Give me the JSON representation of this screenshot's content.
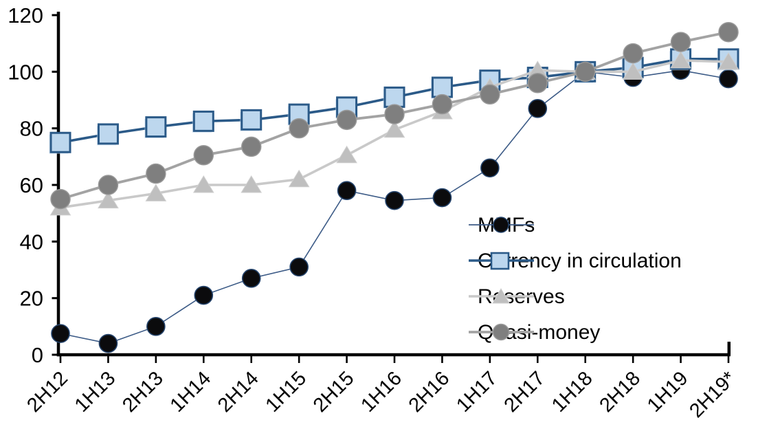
{
  "chart_data": {
    "type": "line",
    "title": "",
    "xlabel": "",
    "ylabel": "",
    "categories": [
      "2H12",
      "1H13",
      "2H13",
      "1H14",
      "2H14",
      "1H15",
      "2H15",
      "1H16",
      "2H16",
      "1H17",
      "2H17",
      "1H18",
      "2H18",
      "1H19",
      "2H19*"
    ],
    "series": [
      {
        "name": "MMFs",
        "marker": "circle-black",
        "line_color": "#3B5A86",
        "line_width": 1.6,
        "fill_color": "#0B0B0D",
        "edge_color": "#24436B",
        "values": [
          7.5,
          4,
          10,
          21,
          27,
          31,
          58,
          54.5,
          55.5,
          66,
          87,
          100,
          98,
          100.5,
          97.5
        ]
      },
      {
        "name": "Currency in circulation",
        "marker": "square-lightblue",
        "line_color": "#2B5A88",
        "line_width": 3.6,
        "fill_color": "#BDD7EE",
        "edge_color": "#2B5A88",
        "values": [
          75,
          78,
          80.5,
          82.5,
          83,
          85,
          87.5,
          91,
          94.5,
          97,
          98,
          100,
          101.5,
          104.5,
          104.5
        ]
      },
      {
        "name": "Reserves",
        "marker": "triangle-lightgray",
        "line_color": "#C9C9C9",
        "line_width": 3.6,
        "fill_color": "#BFBFBF",
        "edge_color": "#CFCFCF",
        "values": [
          52,
          54.5,
          57,
          60,
          60,
          62,
          70.5,
          79.5,
          86,
          94.5,
          100.5,
          100,
          100,
          104,
          103.5
        ]
      },
      {
        "name": "Quasi-money",
        "marker": "circle-gray",
        "line_color": "#A3A3A3",
        "line_width": 3.8,
        "fill_color": "#7F7F7F",
        "edge_color": "#999999",
        "values": [
          55,
          60,
          64,
          70.5,
          73.5,
          80,
          83,
          85,
          88.5,
          92,
          96,
          100,
          106.5,
          110.5,
          114
        ]
      }
    ],
    "ylim": [
      0,
      120
    ],
    "yticks": [
      0,
      20,
      40,
      60,
      80,
      100,
      120
    ],
    "grid": "off",
    "legend_position": "center-right",
    "axis_color": "#000000"
  }
}
